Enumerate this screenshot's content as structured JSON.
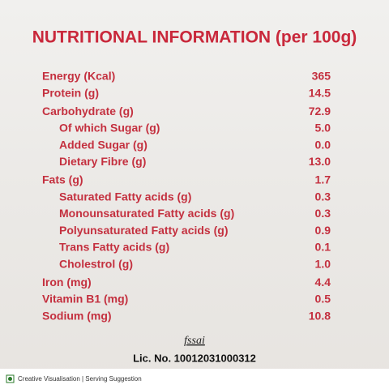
{
  "title": "NUTRITIONAL INFORMATION (per 100g)",
  "rows": [
    {
      "label": "Energy (Kcal)",
      "value": "365"
    },
    {
      "label": "Protein (g)",
      "value": "14.5"
    },
    {
      "label": "Carbohydrate (g)",
      "value": "72.9",
      "sub": [
        {
          "label": "Of which Sugar (g)",
          "value": "5.0"
        },
        {
          "label": "Added Sugar (g)",
          "value": "0.0"
        },
        {
          "label": "Dietary Fibre (g)",
          "value": "13.0"
        }
      ]
    },
    {
      "label": "Fats (g)",
      "value": "1.7",
      "sub": [
        {
          "label": "Saturated Fatty acids (g)",
          "value": "0.3"
        },
        {
          "label": "Monounsaturated Fatty acids (g)",
          "value": "0.3"
        },
        {
          "label": "Polyunsaturated Fatty acids (g)",
          "value": "0.9"
        },
        {
          "label": "Trans Fatty acids (g)",
          "value": "0.1"
        },
        {
          "label": "Cholestrol (g)",
          "value": "1.0"
        }
      ]
    },
    {
      "label": "Iron (mg)",
      "value": "4.4"
    },
    {
      "label": "Vitamin B1 (mg)",
      "value": "0.5"
    },
    {
      "label": "Sodium (mg)",
      "value": "10.8"
    }
  ],
  "footer": {
    "logo": "fssai",
    "license": "Lic. No. 10012031000312",
    "note": "Creative Visualisation | Serving Suggestion"
  }
}
